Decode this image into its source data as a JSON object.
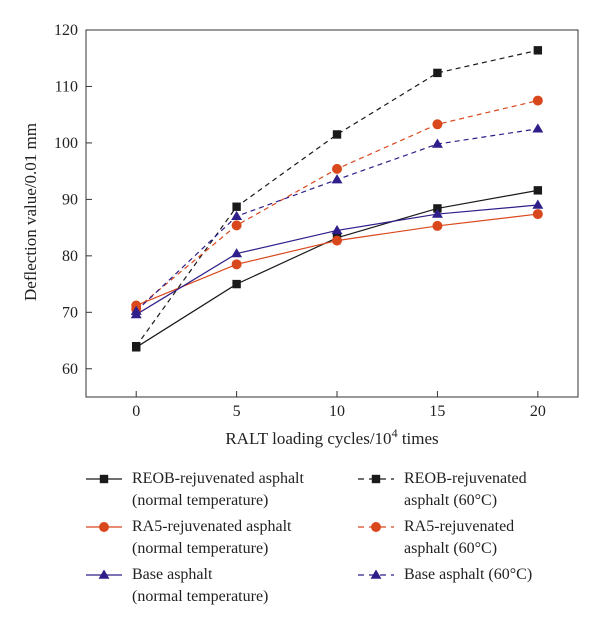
{
  "chart_data": {
    "type": "line",
    "title": "",
    "xlabel": "RALT loading cycles/10⁴ times",
    "ylabel": "Deflection value/0.01 mm",
    "x": [
      0,
      5,
      10,
      15,
      20
    ],
    "xlim": [
      -2.5,
      22
    ],
    "ylim": [
      55,
      120
    ],
    "xticks": [
      0,
      5,
      10,
      15,
      20
    ],
    "yticks": [
      60,
      70,
      80,
      90,
      100,
      110,
      120
    ],
    "grid": false,
    "legend_position": "bottom",
    "series": [
      {
        "name": "REOB-rejuvenated asphalt (normal temperature)",
        "name_lines": [
          "REOB-rejuvenated asphalt",
          "(normal temperature)"
        ],
        "values": [
          63.8,
          75.0,
          83.2,
          88.4,
          91.6
        ],
        "color": "#1a1a1a",
        "marker": "square",
        "dash": false
      },
      {
        "name": "REOB-rejuvenated asphalt (60°C)",
        "name_lines": [
          "REOB-rejuvenated",
          "asphalt (60°C)"
        ],
        "values": [
          64.0,
          88.7,
          101.5,
          112.4,
          116.4
        ],
        "color": "#1a1a1a",
        "marker": "square",
        "dash": true
      },
      {
        "name": "RA5-rejuvenated asphalt (normal temperature)",
        "name_lines": [
          "RA5-rejuvenated asphalt",
          "(normal temperature)"
        ],
        "values": [
          71.2,
          78.5,
          82.7,
          85.3,
          87.4
        ],
        "color": "#d9481c",
        "marker": "circle",
        "dash": false
      },
      {
        "name": "RA5-rejuvenated asphalt (60°C)",
        "name_lines": [
          "RA5-rejuvenated",
          "asphalt (60°C)"
        ],
        "values": [
          70.6,
          85.4,
          95.4,
          103.3,
          107.5
        ],
        "color": "#d9481c",
        "marker": "circle",
        "dash": true
      },
      {
        "name": "Base asphalt (normal temperature)",
        "name_lines": [
          "Base asphalt",
          "(normal temperature)"
        ],
        "values": [
          69.6,
          80.4,
          84.5,
          87.4,
          89.0
        ],
        "color": "#2e1f8a",
        "marker": "triangle",
        "dash": false
      },
      {
        "name": "Base asphalt (60°C)",
        "name_lines": [
          "Base asphalt (60°C)"
        ],
        "values": [
          70.2,
          87.0,
          93.5,
          99.8,
          102.5
        ],
        "color": "#2e1f8a",
        "marker": "triangle",
        "dash": true
      }
    ]
  }
}
